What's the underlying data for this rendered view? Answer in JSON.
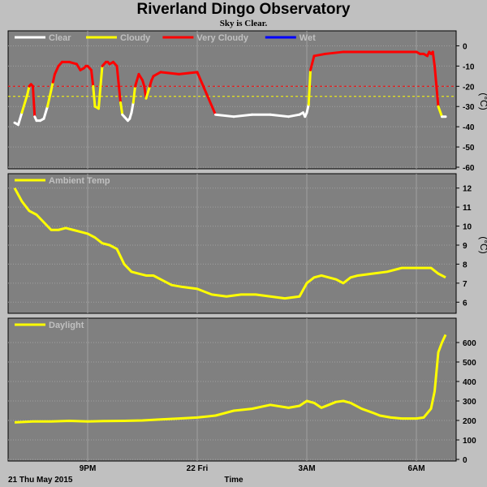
{
  "title": "Riverland Dingo Observatory",
  "subtitle": "Sky is Clear.",
  "x_axis": {
    "label": "Time",
    "date_label": "21 Thu May 2015",
    "ticks": [
      {
        "hour": 21,
        "label": "9PM"
      },
      {
        "hour": 24,
        "label": "22 Fri"
      },
      {
        "hour": 27,
        "label": "3AM"
      },
      {
        "hour": 30,
        "label": "6AM"
      }
    ],
    "range_hours": [
      19,
      31
    ]
  },
  "colors": {
    "background": "#c0c0c0",
    "plot_bg": "#808080",
    "clear": "#ffffff",
    "cloudy": "#ffff00",
    "very_cloudy": "#ff0000",
    "wet": "#0000ff",
    "series": "#ffff00"
  },
  "chart_data": [
    {
      "type": "line",
      "name": "sky",
      "legend": [
        {
          "label": "Clear",
          "color": "#ffffff"
        },
        {
          "label": "Cloudy",
          "color": "#ffff00"
        },
        {
          "label": "Very Cloudy",
          "color": "#ff0000"
        },
        {
          "label": "Wet",
          "color": "#0000ff"
        }
      ],
      "ylabel": "(°C)",
      "ylim": [
        -60,
        5
      ],
      "yticks": [
        0,
        -10,
        -20,
        -30,
        -40,
        -50,
        -60
      ],
      "thresholds": [
        {
          "value": -20,
          "color": "#ff0000"
        },
        {
          "value": -25,
          "color": "#ffff00"
        }
      ],
      "x": [
        19.0,
        19.1,
        19.2,
        19.3,
        19.35,
        19.4,
        19.45,
        19.5,
        19.55,
        19.6,
        19.7,
        19.8,
        19.9,
        20.0,
        20.05,
        20.1,
        20.2,
        20.3,
        20.5,
        20.7,
        20.8,
        20.9,
        20.95,
        21.0,
        21.05,
        21.1,
        21.15,
        21.2,
        21.3,
        21.4,
        21.5,
        21.55,
        21.6,
        21.7,
        21.8,
        21.9,
        21.95,
        22.0,
        22.1,
        22.15,
        22.2,
        22.25,
        22.3,
        22.4,
        22.5,
        22.55,
        22.6,
        22.7,
        22.75,
        22.8,
        23.0,
        23.5,
        24.0,
        24.5,
        25.0,
        25.5,
        26.0,
        26.5,
        26.8,
        26.9,
        26.95,
        27.0,
        27.05,
        27.1,
        27.2,
        27.5,
        28.0,
        28.5,
        29.0,
        29.5,
        30.0,
        30.1,
        30.2,
        30.3,
        30.35,
        30.4,
        30.45,
        30.5,
        30.6,
        30.7,
        30.8
      ],
      "y": [
        -38,
        -39,
        -33,
        -27,
        -24,
        -20,
        -19,
        -20,
        -35,
        -37,
        -37,
        -36,
        -30,
        -22,
        -18,
        -14,
        -10,
        -8,
        -8,
        -9,
        -12,
        -11,
        -10,
        -10,
        -11,
        -12,
        -20,
        -30,
        -31,
        -10,
        -8,
        -8,
        -9,
        -8,
        -10,
        -28,
        -34,
        -35,
        -37,
        -36,
        -33,
        -28,
        -20,
        -14,
        -17,
        -20,
        -26,
        -20,
        -17,
        -15,
        -13,
        -14,
        -13,
        -34,
        -35,
        -34,
        -34,
        -35,
        -34,
        -33,
        -35,
        -33,
        -29,
        -12,
        -5,
        -4,
        -3,
        -3,
        -3,
        -3,
        -3,
        -4,
        -4,
        -5,
        -3,
        -4,
        -3,
        -10,
        -30,
        -35,
        -35
      ],
      "sky_state": [
        "clear",
        "clear",
        "cloudy",
        "cloudy",
        "cloudy",
        "very_cloudy",
        "very_cloudy",
        "very_cloudy",
        "clear",
        "clear",
        "clear",
        "clear",
        "cloudy",
        "cloudy",
        "very_cloudy",
        "very_cloudy",
        "very_cloudy",
        "very_cloudy",
        "very_cloudy",
        "very_cloudy",
        "very_cloudy",
        "very_cloudy",
        "very_cloudy",
        "very_cloudy",
        "very_cloudy",
        "very_cloudy",
        "cloudy",
        "cloudy",
        "cloudy",
        "very_cloudy",
        "very_cloudy",
        "very_cloudy",
        "very_cloudy",
        "very_cloudy",
        "very_cloudy",
        "cloudy",
        "clear",
        "clear",
        "clear",
        "clear",
        "clear",
        "cloudy",
        "very_cloudy",
        "very_cloudy",
        "very_cloudy",
        "very_cloudy",
        "cloudy",
        "very_cloudy",
        "very_cloudy",
        "very_cloudy",
        "very_cloudy",
        "very_cloudy",
        "very_cloudy",
        "clear",
        "clear",
        "clear",
        "clear",
        "clear",
        "clear",
        "clear",
        "clear",
        "clear",
        "cloudy",
        "very_cloudy",
        "very_cloudy",
        "very_cloudy",
        "very_cloudy",
        "very_cloudy",
        "very_cloudy",
        "very_cloudy",
        "very_cloudy",
        "very_cloudy",
        "very_cloudy",
        "very_cloudy",
        "very_cloudy",
        "very_cloudy",
        "very_cloudy",
        "very_cloudy",
        "cloudy",
        "clear",
        "clear"
      ]
    },
    {
      "type": "line",
      "name": "ambient",
      "legend": [
        {
          "label": "Ambient Temp",
          "color": "#ffff00"
        }
      ],
      "ylabel": "(°C)",
      "ylim": [
        5.5,
        12.5
      ],
      "yticks": [
        6,
        7,
        8,
        9,
        10,
        11,
        12
      ],
      "x": [
        19.0,
        19.2,
        19.4,
        19.6,
        19.8,
        20.0,
        20.2,
        20.4,
        20.6,
        20.8,
        21.0,
        21.2,
        21.4,
        21.6,
        21.8,
        22.0,
        22.2,
        22.4,
        22.6,
        22.8,
        23.0,
        23.3,
        23.6,
        24.0,
        24.4,
        24.8,
        25.2,
        25.6,
        26.0,
        26.4,
        26.8,
        27.0,
        27.2,
        27.4,
        27.6,
        27.8,
        28.0,
        28.2,
        28.4,
        28.8,
        29.2,
        29.6,
        30.0,
        30.2,
        30.4,
        30.6,
        30.8
      ],
      "y": [
        12.0,
        11.3,
        10.8,
        10.6,
        10.2,
        9.8,
        9.8,
        9.9,
        9.8,
        9.7,
        9.6,
        9.4,
        9.1,
        9.0,
        8.8,
        8.0,
        7.6,
        7.5,
        7.4,
        7.4,
        7.2,
        6.9,
        6.8,
        6.7,
        6.4,
        6.3,
        6.4,
        6.4,
        6.3,
        6.2,
        6.3,
        7.0,
        7.3,
        7.4,
        7.3,
        7.2,
        7.0,
        7.3,
        7.4,
        7.5,
        7.6,
        7.8,
        7.8,
        7.8,
        7.8,
        7.5,
        7.3
      ]
    },
    {
      "type": "line",
      "name": "daylight",
      "legend": [
        {
          "label": "Daylight",
          "color": "#ffff00"
        }
      ],
      "ylabel": "",
      "ylim": [
        0,
        700
      ],
      "yticks": [
        0,
        100,
        200,
        300,
        400,
        500,
        600
      ],
      "x": [
        19.0,
        19.5,
        20.0,
        20.5,
        21.0,
        21.5,
        22.0,
        22.5,
        23.0,
        23.5,
        24.0,
        24.5,
        25.0,
        25.5,
        26.0,
        26.5,
        26.8,
        27.0,
        27.2,
        27.4,
        27.6,
        27.8,
        28.0,
        28.2,
        28.5,
        28.8,
        29.0,
        29.3,
        29.6,
        30.0,
        30.2,
        30.4,
        30.5,
        30.55,
        30.6,
        30.7,
        30.8
      ],
      "y": [
        190,
        195,
        195,
        198,
        195,
        197,
        198,
        200,
        205,
        210,
        215,
        225,
        250,
        260,
        280,
        265,
        275,
        300,
        290,
        265,
        280,
        295,
        300,
        290,
        260,
        240,
        225,
        215,
        210,
        210,
        215,
        260,
        350,
        450,
        550,
        600,
        640
      ]
    }
  ]
}
